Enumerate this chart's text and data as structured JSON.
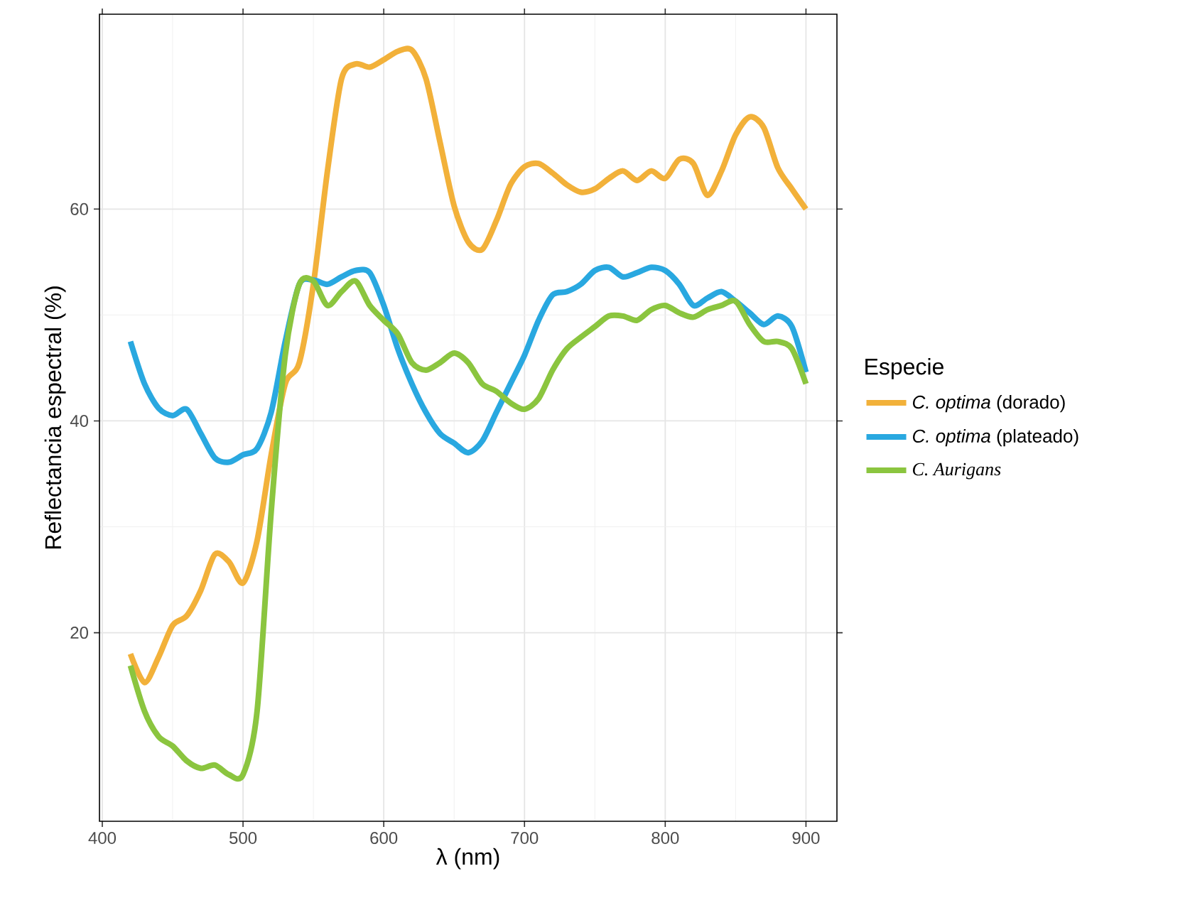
{
  "chart_data": {
    "type": "line",
    "xlabel": "λ (nm)",
    "ylabel": "Reflectancia espectral (%)",
    "legend_title": "Especie",
    "legend": "right",
    "grid": true,
    "xlim": [
      398,
      922
    ],
    "ylim": [
      2.2,
      78.4
    ],
    "xticks": [
      400,
      500,
      600,
      700,
      800,
      900
    ],
    "yticks": [
      20,
      40,
      60
    ],
    "x": [
      420,
      430,
      440,
      450,
      460,
      470,
      480,
      490,
      500,
      510,
      520,
      530,
      540,
      550,
      560,
      570,
      580,
      590,
      600,
      610,
      620,
      630,
      640,
      650,
      660,
      670,
      680,
      690,
      700,
      710,
      720,
      730,
      740,
      750,
      760,
      770,
      780,
      790,
      800,
      810,
      820,
      830,
      840,
      850,
      860,
      870,
      880,
      890,
      900
    ],
    "series": [
      {
        "name": "*C. optima* (dorado)",
        "color": "#f2b13a",
        "values": [
          18.0,
          15.3,
          17.7,
          20.7,
          21.6,
          24.0,
          27.4,
          26.7,
          24.7,
          28.7,
          36.8,
          43.5,
          45.5,
          52.9,
          63.6,
          72.3,
          73.7,
          73.4,
          74.1,
          74.9,
          75.0,
          72.3,
          66.3,
          60.3,
          56.9,
          56.2,
          58.9,
          62.3,
          64.0,
          64.3,
          63.4,
          62.3,
          61.6,
          61.9,
          62.9,
          63.6,
          62.7,
          63.6,
          62.9,
          64.7,
          64.3,
          61.3,
          63.6,
          67.0,
          68.7,
          67.7,
          63.9,
          61.9,
          60.0
        ]
      },
      {
        "name": "*C. optima* (plateado)",
        "color": "#29a8e0",
        "values": [
          47.5,
          43.5,
          41.2,
          40.5,
          41.1,
          38.8,
          36.5,
          36.1,
          36.8,
          37.4,
          40.8,
          47.5,
          52.9,
          53.3,
          52.9,
          53.6,
          54.2,
          54.0,
          50.9,
          46.8,
          43.5,
          40.8,
          38.8,
          37.9,
          37.0,
          38.1,
          40.8,
          43.5,
          46.2,
          49.5,
          51.9,
          52.2,
          52.9,
          54.2,
          54.5,
          53.6,
          54.0,
          54.5,
          54.2,
          52.9,
          50.9,
          51.6,
          52.2,
          51.3,
          50.2,
          49.1,
          49.9,
          48.9,
          44.6
        ]
      },
      {
        "name": "C. Aurigans",
        "color": "#8bc53f",
        "values": [
          16.9,
          12.6,
          10.2,
          9.3,
          7.9,
          7.2,
          7.5,
          6.6,
          6.6,
          12.6,
          31.4,
          46.2,
          52.9,
          53.2,
          50.9,
          52.2,
          53.2,
          50.9,
          49.5,
          48.2,
          45.5,
          44.8,
          45.5,
          46.4,
          45.5,
          43.5,
          42.8,
          41.7,
          41.1,
          42.1,
          44.8,
          46.8,
          47.9,
          48.9,
          49.9,
          49.9,
          49.5,
          50.5,
          50.9,
          50.2,
          49.8,
          50.5,
          50.9,
          51.3,
          49.1,
          47.5,
          47.5,
          46.8,
          43.5
        ]
      }
    ]
  }
}
